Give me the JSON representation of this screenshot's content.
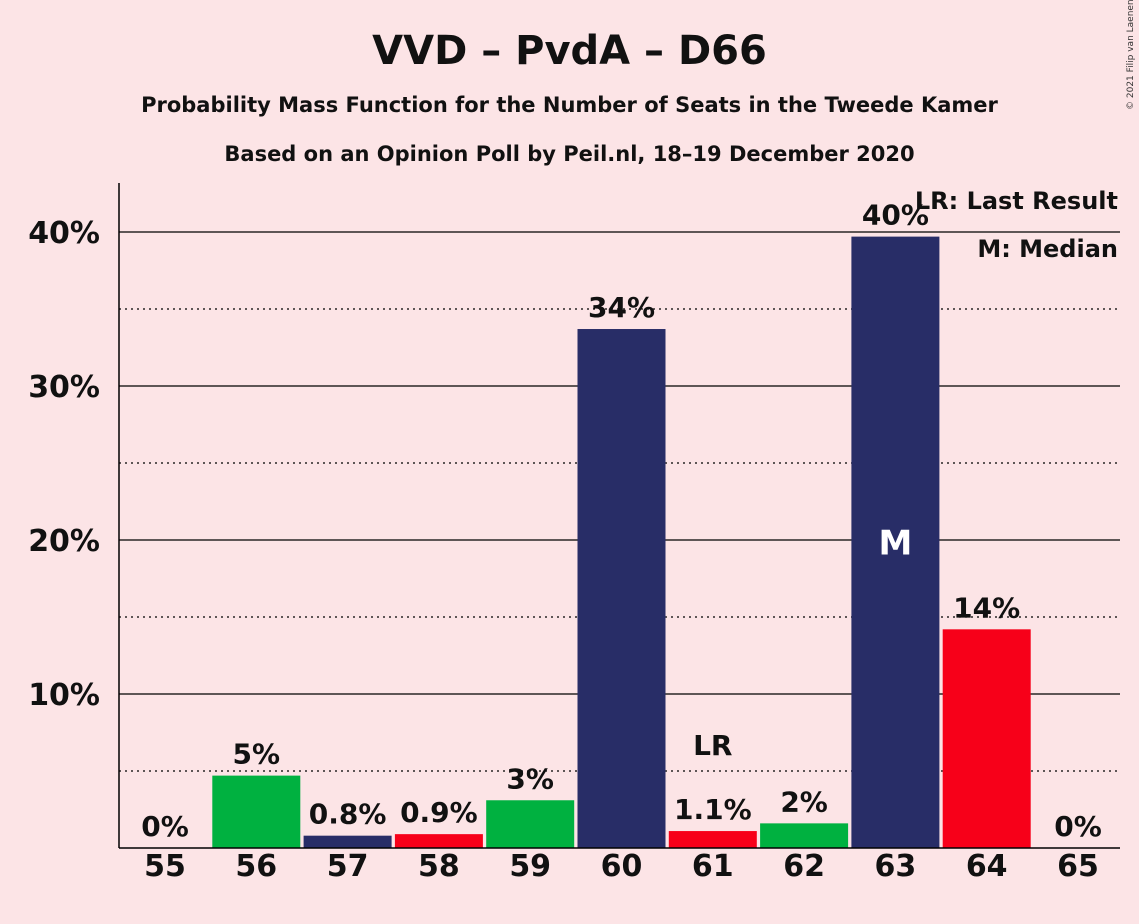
{
  "header": {
    "title": "VVD – PvdA – D66",
    "subtitle1": "Probability Mass Function for the Number of Seats in the Tweede Kamer",
    "subtitle2": "Based on an Opinion Poll by Peil.nl, 18–19 December 2020",
    "copyright": "© 2021 Filip van Laenen"
  },
  "legend": {
    "lr": "LR: Last Result",
    "m": "M: Median"
  },
  "colors": {
    "background": "#FCE4E6",
    "vvd": "#282D67",
    "pvda": "#00B140",
    "d66": "#F70019"
  },
  "chart_data": {
    "type": "bar",
    "categories": [
      "55",
      "56",
      "57",
      "58",
      "59",
      "60",
      "61",
      "62",
      "63",
      "64",
      "65"
    ],
    "values": [
      0,
      4.7,
      0.8,
      0.9,
      3.1,
      33.7,
      1.1,
      1.6,
      39.7,
      14.2,
      0
    ],
    "labels": [
      "0%",
      "5%",
      "0.8%",
      "0.9%",
      "3%",
      "34%",
      "1.1%",
      "2%",
      "40%",
      "14%",
      "0%"
    ],
    "bar_colors": [
      "#282D67",
      "#00B140",
      "#282D67",
      "#F70019",
      "#00B140",
      "#282D67",
      "#F70019",
      "#00B140",
      "#282D67",
      "#F70019",
      "#282D67"
    ],
    "ylim": [
      0,
      43
    ],
    "yticks": [
      10,
      20,
      30,
      40
    ],
    "ytick_labels": [
      "10%",
      "20%",
      "30%",
      "40%"
    ],
    "minor_gridlines": [
      5,
      15,
      25,
      35
    ],
    "last_result_category": "61",
    "last_result_marker": "LR",
    "median_category": "63",
    "median_marker": "M"
  }
}
